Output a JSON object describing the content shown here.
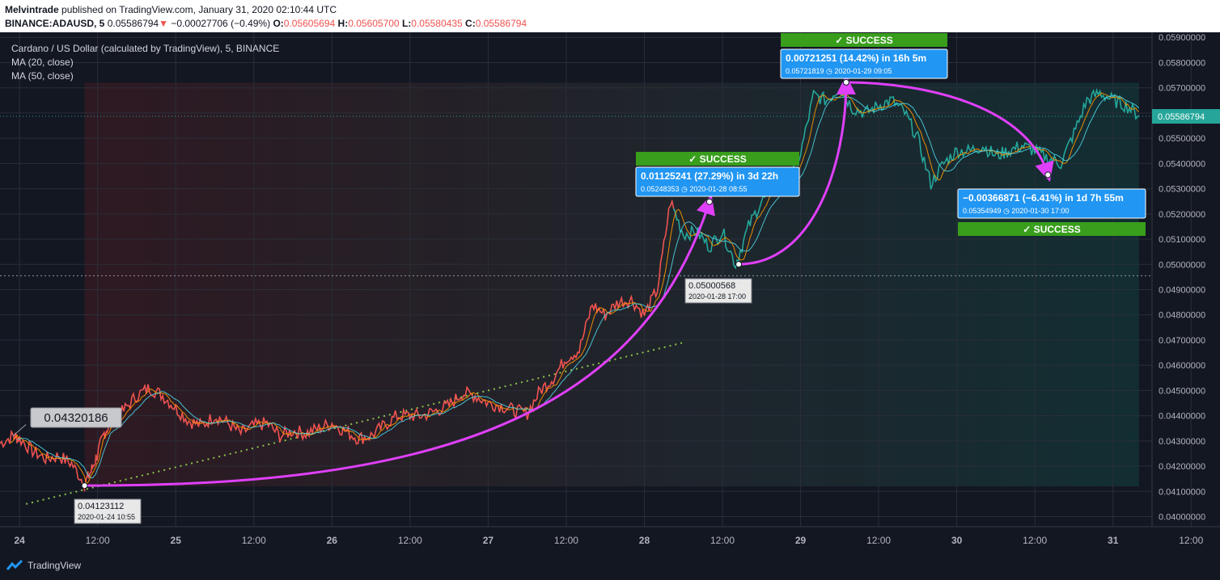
{
  "header": {
    "author": "Melvintrade",
    "published_text": "published on TradingView.com, January 31, 2020 02:10:44 UTC",
    "symbol": "BINANCE:ADAUSD, 5",
    "last": "0.05586794",
    "arrow": "▼",
    "change": "−0.00027706 (−0.49%)",
    "o_label": "O:",
    "o_value": "0.05605694",
    "h_label": "H:",
    "h_value": "0.05605700",
    "l_label": "L:",
    "l_value": "0.05580435",
    "c_label": "C:",
    "c_value": "0.05586794"
  },
  "legend": {
    "title": "Cardano / US Dollar (calculated by TradingView), 5, BINANCE",
    "ma20": "MA (20, close)",
    "ma50": "MA (50, close)"
  },
  "colors": {
    "background": "#131722",
    "price_up": "#26a69a",
    "price_down": "#ef5350",
    "ma20": "#ff9800",
    "ma50": "#4dd0e1",
    "arc": "#e040fb",
    "callout": "#2196f3",
    "success": "#389e1c",
    "trend": "#8bc34a",
    "grid": "#2a2e39",
    "text": "#b2b5be"
  },
  "chart_data": {
    "type": "line",
    "ylim": [
      0.0396,
      0.0592
    ],
    "y_ticks": [
      "0.05900000",
      "0.05800000",
      "0.05700000",
      "0.05600000",
      "0.05500000",
      "0.05400000",
      "0.05300000",
      "0.05200000",
      "0.05100000",
      "0.05000000",
      "0.04900000",
      "0.04800000",
      "0.04700000",
      "0.04600000",
      "0.04500000",
      "0.04400000",
      "0.04300000",
      "0.04200000",
      "0.04100000",
      "0.04000000"
    ],
    "x_ticks": [
      "24",
      "12:00",
      "25",
      "12:00",
      "26",
      "12:00",
      "27",
      "12:00",
      "28",
      "12:00",
      "29",
      "12:00",
      "30",
      "12:00",
      "31",
      "12:00"
    ],
    "x_range_hours": [
      -3,
      174
    ],
    "last_price": "0.05586794",
    "last_price_value": 0.05586794,
    "dotted_level": 0.04955,
    "series": [
      {
        "x_hours": [
          -3,
          -1,
          0,
          2,
          4,
          6,
          8,
          10,
          11,
          12,
          13,
          14,
          16,
          18,
          20,
          22,
          24,
          26,
          28,
          30,
          32,
          34,
          36,
          38,
          40,
          42,
          44,
          46,
          48,
          50,
          52,
          54,
          56,
          58,
          60,
          62,
          64,
          66,
          68,
          70,
          72,
          74,
          76,
          78,
          80,
          82,
          84,
          86,
          88,
          90,
          92,
          94,
          96,
          98,
          100,
          102,
          104,
          106,
          108,
          110,
          112,
          114,
          116,
          118,
          120,
          122,
          124,
          126,
          128,
          130,
          132,
          134,
          136,
          138,
          140,
          142,
          144,
          146,
          148,
          150,
          152,
          154,
          156,
          158,
          160,
          162,
          164,
          166,
          168,
          170,
          172
        ],
        "values": [
          0.0429,
          0.0432,
          0.0431,
          0.0426,
          0.0423,
          0.0424,
          0.0421,
          0.0413,
          0.0418,
          0.0425,
          0.0433,
          0.0437,
          0.0442,
          0.0448,
          0.0451,
          0.0448,
          0.0443,
          0.0438,
          0.0436,
          0.044,
          0.0437,
          0.0433,
          0.0436,
          0.0437,
          0.0432,
          0.0434,
          0.0433,
          0.0435,
          0.0437,
          0.0434,
          0.0431,
          0.0432,
          0.0436,
          0.044,
          0.044,
          0.044,
          0.0442,
          0.0444,
          0.0449,
          0.0448,
          0.0445,
          0.0444,
          0.0442,
          0.0441,
          0.045,
          0.0455,
          0.0463,
          0.0466,
          0.0484,
          0.048,
          0.0485,
          0.0486,
          0.048,
          0.049,
          0.0525,
          0.0512,
          0.0513,
          0.0507,
          0.0513,
          0.05,
          0.0515,
          0.0525,
          0.053,
          0.0532,
          0.0544,
          0.0567,
          0.0565,
          0.057,
          0.0562,
          0.056,
          0.0563,
          0.0565,
          0.056,
          0.055,
          0.0532,
          0.054,
          0.0545,
          0.0545,
          0.0547,
          0.0543,
          0.0545,
          0.0547,
          0.0545,
          0.0542,
          0.054,
          0.0552,
          0.0565,
          0.0568,
          0.0565,
          0.0563,
          0.0559
        ]
      }
    ]
  },
  "annotations": {
    "low_label": "0.04320186",
    "point_a_value": "0.04123112",
    "point_a_date": "2020-01-24 10:55",
    "point_b_value": "0.05000568",
    "point_b_date": "2020-01-28 17:00",
    "callout1_line1": "0.01125241 (27.29%) in 3d 22h",
    "callout1_line2": "0.05248353 ◷ 2020-01-28  08:55",
    "callout2_line1": "0.00721251 (14.42%) in 16h 5m",
    "callout2_line2": "0.05721819 ◷ 2020-01-29  09:05",
    "callout3_line1": "−0.00366871 (−6.41%) in 1d 7h 55m",
    "callout3_line2": "0.05354949 ◷ 2020-01-30  17:00",
    "success": "✓ SUCCESS"
  },
  "footer": {
    "brand": "TradingView"
  }
}
